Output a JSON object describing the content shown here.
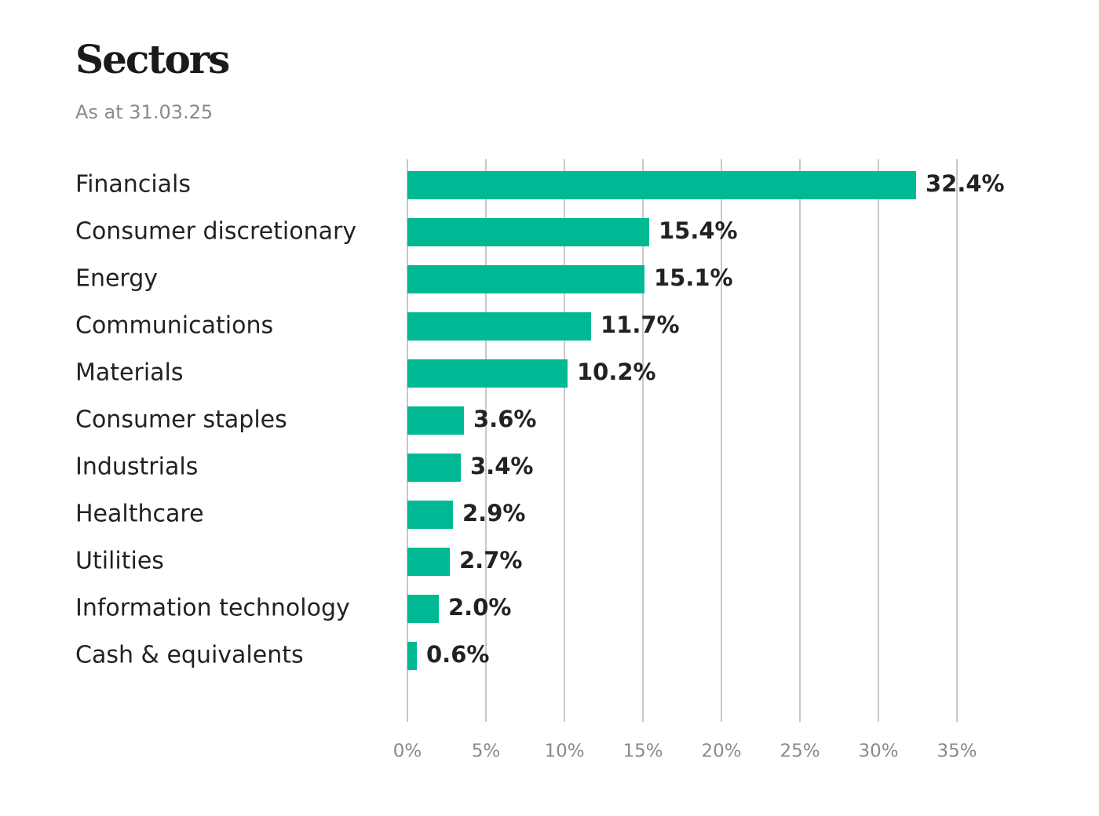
{
  "chart_data": {
    "type": "bar",
    "orientation": "horizontal",
    "title": "Sectors",
    "subtitle": "As at 31.03.25",
    "categories": [
      "Financials",
      "Consumer discretionary",
      "Energy",
      "Communications",
      "Materials",
      "Consumer staples",
      "Industrials",
      "Healthcare",
      "Utilities",
      "Information technology",
      "Cash & equivalents"
    ],
    "values": [
      32.4,
      15.4,
      15.1,
      11.7,
      10.2,
      3.6,
      3.4,
      2.9,
      2.7,
      2.0,
      0.6
    ],
    "value_labels": [
      "32.4%",
      "15.4%",
      "15.1%",
      "11.7%",
      "10.2%",
      "3.6%",
      "3.4%",
      "2.9%",
      "2.7%",
      "2.0%",
      "0.6%"
    ],
    "color": "#00b994",
    "xlim": [
      0,
      35
    ],
    "xticks": [
      {
        "value": 0,
        "label": "0%"
      },
      {
        "value": 5,
        "label": "5%"
      },
      {
        "value": 10,
        "label": "10%"
      },
      {
        "value": 15,
        "label": "15%"
      },
      {
        "value": 20,
        "label": "20%"
      },
      {
        "value": 25,
        "label": "25%"
      },
      {
        "value": 30,
        "label": "30%"
      },
      {
        "value": 35,
        "label": "35%"
      }
    ],
    "grid": true
  }
}
